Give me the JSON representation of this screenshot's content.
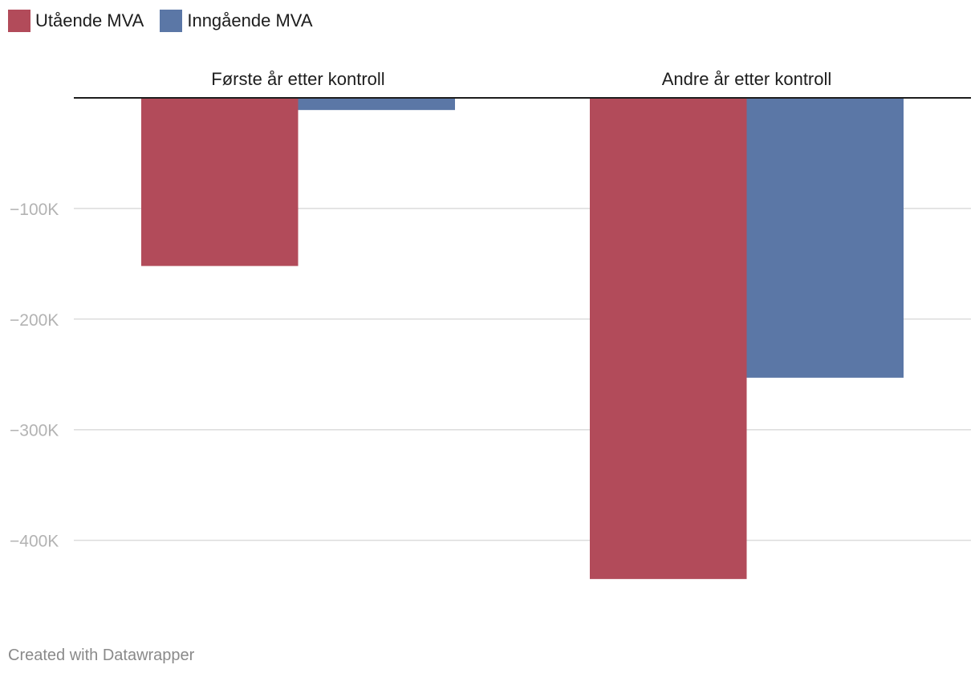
{
  "chart_data": {
    "type": "bar",
    "categories": [
      "Første år etter kontroll",
      "Andre år etter kontroll"
    ],
    "series": [
      {
        "name": "Utående MVA",
        "color": "#b24b5a",
        "values": [
          -152000,
          -435000
        ]
      },
      {
        "name": "Inngående MVA",
        "color": "#5b77a6",
        "values": [
          -11000,
          -253000
        ]
      }
    ],
    "y_ticks": [
      -100000,
      -200000,
      -300000,
      -400000
    ],
    "y_tick_labels": [
      "−100K",
      "−200K",
      "−300K",
      "−400K"
    ],
    "ylim": [
      -450000,
      0
    ],
    "grid": true,
    "legend_position": "top-left"
  },
  "footer": {
    "credit": "Created with Datawrapper"
  }
}
